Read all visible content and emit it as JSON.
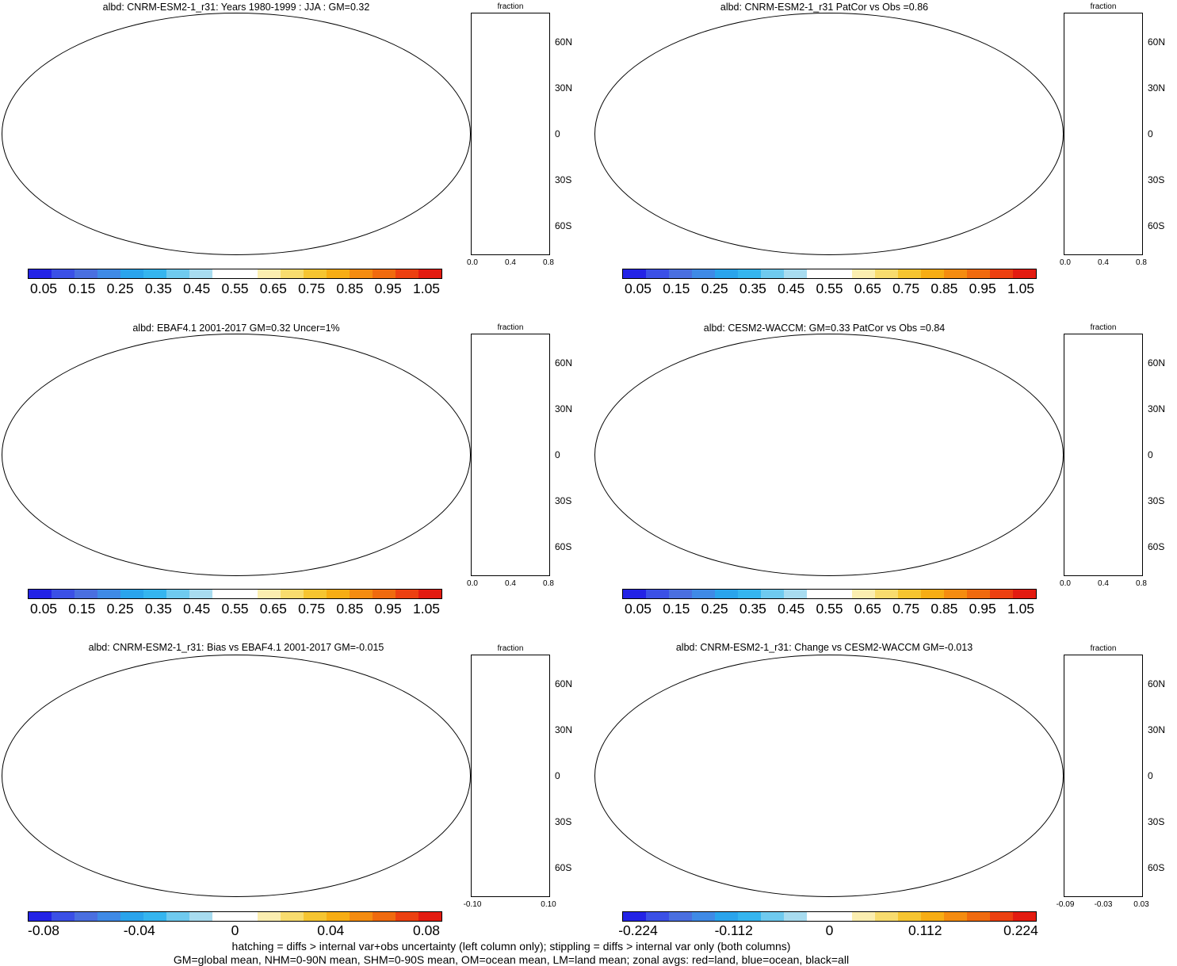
{
  "colorbar_colors": {
    "full": [
      "#2323e6",
      "#3b50e6",
      "#4a6fe0",
      "#3f8ae6",
      "#2aa4ec",
      "#35b5ef",
      "#6fcaef",
      "#a8dcf0",
      "#ffffff",
      "#ffffff",
      "#fbeeb0",
      "#f8dc6e",
      "#f6c531",
      "#f7ad14",
      "#f58c10",
      "#f06a0e",
      "#ec4010",
      "#e31b10"
    ],
    "diff": [
      "#2323e6",
      "#3b50e6",
      "#4a6fe0",
      "#3f8ae6",
      "#2aa4ec",
      "#35b5ef",
      "#6fcaef",
      "#a8dcf0",
      "#ffffff",
      "#ffffff",
      "#fbeeb0",
      "#f8dc6e",
      "#f6c531",
      "#f7ad14",
      "#f58c10",
      "#f06a0e",
      "#ec4010",
      "#e31b10"
    ]
  },
  "line_colors": {
    "land": "#ff0000",
    "ocean": "#0000ff",
    "all": "#000000"
  },
  "lat_labels": [
    "60N",
    "30N",
    "0",
    "30S",
    "60S"
  ],
  "panels": [
    {
      "id": "model-climatology",
      "title": "albd: CNRM-ESM2-1_r31: Years 1980-1999 : JJA : GM=0.32",
      "colorbar_labels": [
        "0.05",
        "0.15",
        "0.25",
        "0.35",
        "0.45",
        "0.55",
        "0.65",
        "0.75",
        "0.85",
        "0.95",
        "1.05"
      ],
      "zonal_title": "fraction",
      "zonal_xlabels": [
        "0.0",
        "0.4",
        "0.8"
      ]
    },
    {
      "id": "model-vs-obs",
      "title": "albd: CNRM-ESM2-1_r31 PatCor vs Obs =0.86",
      "colorbar_labels": [
        "0.05",
        "0.15",
        "0.25",
        "0.35",
        "0.45",
        "0.55",
        "0.65",
        "0.75",
        "0.85",
        "0.95",
        "1.05"
      ],
      "zonal_title": "fraction",
      "zonal_xlabels": [
        "0.0",
        "0.4",
        "0.8"
      ]
    },
    {
      "id": "obs-climatology",
      "title": "albd: EBAF4.1 2001-2017 GM=0.32 Uncer=1%",
      "colorbar_labels": [
        "0.05",
        "0.15",
        "0.25",
        "0.35",
        "0.45",
        "0.55",
        "0.65",
        "0.75",
        "0.85",
        "0.95",
        "1.05"
      ],
      "zonal_title": "fraction",
      "zonal_xlabels": [
        "0.0",
        "0.4",
        "0.8"
      ]
    },
    {
      "id": "reference-model",
      "title": "albd: CESM2-WACCM: GM=0.33 PatCor vs Obs =0.84",
      "colorbar_labels": [
        "0.05",
        "0.15",
        "0.25",
        "0.35",
        "0.45",
        "0.55",
        "0.65",
        "0.75",
        "0.85",
        "0.95",
        "1.05"
      ],
      "zonal_title": "fraction",
      "zonal_xlabels": [
        "0.0",
        "0.4",
        "0.8"
      ]
    },
    {
      "id": "bias",
      "title": "albd: CNRM-ESM2-1_r31: Bias vs EBAF4.1 2001-2017 GM=-0.015",
      "colorbar_labels": [
        "-0.08",
        "-0.04",
        "0",
        "0.04",
        "0.08"
      ],
      "zonal_title": "fraction",
      "zonal_xlabels": [
        "-0.10",
        "0.10"
      ]
    },
    {
      "id": "change",
      "title": "albd: CNRM-ESM2-1_r31: Change vs CESM2-WACCM GM=-0.013",
      "colorbar_labels": [
        "-0.224",
        "-0.112",
        "0",
        "0.112",
        "0.224"
      ],
      "zonal_title": "fraction",
      "zonal_xlabels": [
        "-0.09",
        "-0.03",
        "0.03"
      ]
    }
  ],
  "footnotes": [
    "hatching = diffs > internal var+obs uncertainty (left column only); stippling = diffs > internal var only (both columns)",
    "GM=global mean, NHM=0-90N mean, SHM=0-90S mean, OM=ocean mean, LM=land mean; zonal avgs: red=land, blue=ocean, black=all"
  ]
}
